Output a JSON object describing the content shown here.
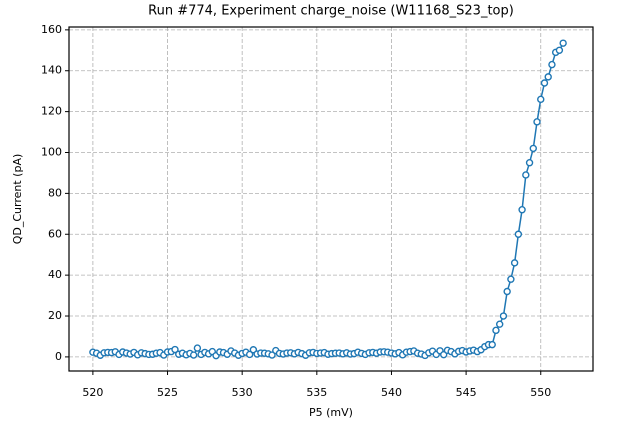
{
  "chart_data": {
    "type": "line",
    "title": "Run #774, Experiment charge_noise (W11168_S23_top)",
    "xlabel": "P5 (mV)",
    "ylabel": "QD_Current (pA)",
    "color": "#1f77b4",
    "grid": true,
    "xlim": [
      518.4,
      553.5
    ],
    "ylim": [
      -6.9,
      161.4
    ],
    "xticks": [
      520,
      525,
      530,
      535,
      540,
      545,
      550
    ],
    "yticks": [
      0,
      20,
      40,
      60,
      80,
      100,
      120,
      140,
      160
    ],
    "x": [
      520,
      520.25,
      520.5,
      520.75,
      521,
      521.25,
      521.5,
      521.75,
      522,
      522.25,
      522.5,
      522.75,
      523,
      523.25,
      523.5,
      523.75,
      524,
      524.25,
      524.5,
      524.75,
      525,
      525.25,
      525.5,
      525.75,
      526,
      526.25,
      526.5,
      526.75,
      527,
      527.25,
      527.5,
      527.75,
      528,
      528.25,
      528.5,
      528.75,
      529,
      529.25,
      529.5,
      529.75,
      530,
      530.25,
      530.5,
      530.75,
      531,
      531.25,
      531.5,
      531.75,
      532,
      532.25,
      532.5,
      532.75,
      533,
      533.25,
      533.5,
      533.75,
      534,
      534.25,
      534.5,
      534.75,
      535,
      535.25,
      535.5,
      535.75,
      536,
      536.25,
      536.5,
      536.75,
      537,
      537.25,
      537.5,
      537.75,
      538,
      538.25,
      538.5,
      538.75,
      539,
      539.25,
      539.5,
      539.75,
      540,
      540.25,
      540.5,
      540.75,
      541,
      541.25,
      541.5,
      541.75,
      542,
      542.25,
      542.5,
      542.75,
      543,
      543.25,
      543.5,
      543.75,
      544,
      544.25,
      544.5,
      544.75,
      545,
      545.25,
      545.5,
      545.75,
      546,
      546.25,
      546.5,
      546.75,
      547,
      547.25,
      547.5,
      547.75,
      548,
      548.25,
      548.5,
      548.75,
      549,
      549.25,
      549.5,
      549.75,
      550,
      550.25,
      550.5,
      550.75,
      551,
      551.25,
      551.5
    ],
    "values": [
      2.3,
      1.8,
      0.8,
      2.0,
      2.2,
      2.1,
      2.5,
      1.2,
      2.4,
      1.9,
      1.4,
      2.2,
      1.0,
      2.0,
      1.6,
      1.2,
      1.3,
      1.8,
      2.1,
      0.9,
      2.4,
      2.6,
      3.6,
      1.3,
      1.8,
      1.0,
      1.7,
      0.9,
      4.3,
      1.2,
      2.2,
      1.5,
      2.6,
      0.6,
      2.4,
      2.1,
      1.3,
      2.9,
      1.9,
      0.8,
      1.7,
      2.3,
      1.2,
      3.5,
      1.4,
      1.9,
      1.8,
      1.5,
      0.9,
      3.1,
      1.7,
      1.4,
      1.9,
      2.0,
      1.5,
      2.2,
      1.6,
      0.8,
      2.0,
      2.2,
      1.7,
      1.9,
      2.1,
      1.3,
      1.6,
      1.8,
      1.9,
      1.5,
      2.0,
      1.4,
      1.6,
      2.3,
      1.7,
      1.2,
      2.0,
      2.2,
      1.8,
      2.4,
      2.5,
      2.3,
      1.9,
      1.5,
      2.1,
      1.0,
      2.3,
      2.6,
      2.9,
      1.8,
      1.4,
      0.7,
      2.0,
      2.8,
      1.2,
      3.0,
      1.1,
      3.2,
      2.6,
      1.5,
      2.7,
      3.1,
      2.4,
      2.9,
      3.3,
      2.6,
      3.5,
      5,
      6,
      6,
      13,
      16,
      20,
      32,
      38,
      46,
      60,
      72,
      89,
      95,
      102,
      115,
      126,
      134,
      137,
      143,
      149,
      150,
      153.5
    ]
  }
}
